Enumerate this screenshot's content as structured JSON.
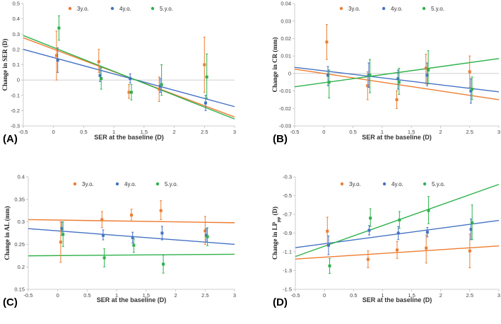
{
  "colors": {
    "3y": "#ED7D31",
    "4y": "#4472C4",
    "5y": "#2DB24A",
    "axis": "#bfbfbf",
    "text": "#444444"
  },
  "legend": [
    {
      "key": "3y",
      "label": "3y.o."
    },
    {
      "key": "4y",
      "label": "4y.o."
    },
    {
      "key": "5y",
      "label": "5.y.o."
    }
  ],
  "chart_data": [
    {
      "type": "scatter",
      "panel_label": "(A)",
      "xlabel": "SER at the baseline (D)",
      "ylabel": "Change in SER (D)",
      "ylabel_sub": "",
      "ylabel_tail": "",
      "xlim": [
        -0.5,
        3
      ],
      "xticks": [
        -0.5,
        0,
        0.5,
        1,
        1.5,
        2,
        2.5,
        3
      ],
      "xtick_labels": [
        "-0.5",
        "0",
        "0.5",
        "1",
        "1.5",
        "2",
        "2.5",
        "3"
      ],
      "ylim": [
        -0.3,
        0.5
      ],
      "yticks": [
        -0.3,
        -0.2,
        -0.1,
        0,
        0.1,
        0.2,
        0.3,
        0.4,
        0.5
      ],
      "ytick_labels": [
        "-0.3",
        "-0.2",
        "-0.1",
        "0",
        "0.1",
        "0.2",
        "0.3",
        "0.4",
        "0.5"
      ],
      "series": [
        {
          "name": "3y.o.",
          "key": "3y",
          "points": [
            {
              "x": 0.05,
              "y": 0.16,
              "lo": 0.0,
              "hi": 0.32
            },
            {
              "x": 0.75,
              "y": 0.12,
              "lo": 0.05,
              "hi": 0.2
            },
            {
              "x": 1.25,
              "y": -0.08,
              "lo": -0.12,
              "hi": -0.03
            },
            {
              "x": 1.75,
              "y": -0.06,
              "lo": -0.14,
              "hi": 0.02
            },
            {
              "x": 2.5,
              "y": 0.1,
              "lo": -0.08,
              "hi": 0.28
            }
          ],
          "trend": [
            0.202,
            -0.148
          ]
        },
        {
          "name": "4y.o.",
          "key": "4y",
          "points": [
            {
              "x": 0.07,
              "y": 0.13,
              "lo": 0.05,
              "hi": 0.21
            },
            {
              "x": 0.77,
              "y": 0.03,
              "lo": -0.01,
              "hi": 0.08
            },
            {
              "x": 1.27,
              "y": 0.01,
              "lo": -0.02,
              "hi": 0.04
            },
            {
              "x": 1.77,
              "y": -0.04,
              "lo": -0.08,
              "hi": 0.01
            },
            {
              "x": 2.52,
              "y": -0.15,
              "lo": -0.2,
              "hi": -0.1
            }
          ],
          "trend": [
            0.147,
            -0.107
          ]
        },
        {
          "name": "5.y.o.",
          "key": "5y",
          "points": [
            {
              "x": 0.09,
              "y": 0.34,
              "lo": 0.26,
              "hi": 0.42
            },
            {
              "x": 0.79,
              "y": 0.01,
              "lo": -0.06,
              "hi": 0.08
            },
            {
              "x": 1.29,
              "y": -0.08,
              "lo": -0.13,
              "hi": -0.03
            },
            {
              "x": 1.79,
              "y": -0.03,
              "lo": -0.1,
              "hi": 0.1
            },
            {
              "x": 2.54,
              "y": 0.02,
              "lo": -0.12,
              "hi": 0.17
            }
          ],
          "trend": [
            0.213,
            -0.156
          ]
        }
      ]
    },
    {
      "type": "scatter",
      "panel_label": "(B)",
      "xlabel": "SER at the baseline (D)",
      "ylabel": "Change in CR (mm)",
      "ylabel_sub": "",
      "ylabel_tail": "",
      "xlim": [
        -0.5,
        3
      ],
      "xticks": [
        -0.5,
        0,
        0.5,
        1,
        1.5,
        2,
        2.5,
        3
      ],
      "xtick_labels": [
        "-0.5",
        "0",
        "0.5",
        "1",
        "1.5",
        "2",
        "2.5",
        "3"
      ],
      "ylim": [
        -0.03,
        0.04
      ],
      "yticks": [
        -0.03,
        -0.02,
        -0.01,
        0,
        0.01,
        0.02,
        0.03,
        0.04
      ],
      "ytick_labels": [
        "-0.03",
        "-0.02",
        "-0.01",
        "0",
        "0.01",
        "0.02",
        "0.03",
        "0.04"
      ],
      "series": [
        {
          "name": "3y.o.",
          "key": "3y",
          "points": [
            {
              "x": 0.05,
              "y": 0.018,
              "lo": 0.008,
              "hi": 0.028
            },
            {
              "x": 0.75,
              "y": -0.007,
              "lo": -0.015,
              "hi": 0.001
            },
            {
              "x": 1.25,
              "y": -0.015,
              "lo": -0.02,
              "hi": -0.01
            },
            {
              "x": 1.75,
              "y": 0.003,
              "lo": -0.006,
              "hi": 0.011
            },
            {
              "x": 2.5,
              "y": 0.001,
              "lo": -0.008,
              "hi": 0.01
            }
          ],
          "trend": [
            0.0,
            -0.005
          ]
        },
        {
          "name": "4y.o.",
          "key": "4y",
          "points": [
            {
              "x": 0.07,
              "y": -0.001,
              "lo": -0.007,
              "hi": 0.004
            },
            {
              "x": 0.77,
              "y": -0.001,
              "lo": -0.008,
              "hi": 0.006
            },
            {
              "x": 1.27,
              "y": -0.003,
              "lo": -0.009,
              "hi": 0.002
            },
            {
              "x": 1.77,
              "y": -0.001,
              "lo": -0.007,
              "hi": 0.006
            },
            {
              "x": 2.52,
              "y": -0.01,
              "lo": -0.017,
              "hi": -0.003
            }
          ],
          "trend": [
            0.0015,
            -0.004
          ]
        },
        {
          "name": "5.y.o.",
          "key": "5y",
          "points": [
            {
              "x": 0.09,
              "y": -0.005,
              "lo": -0.014,
              "hi": 0.002
            },
            {
              "x": 0.79,
              "y": -0.001,
              "lo": -0.011,
              "hi": 0.008
            },
            {
              "x": 1.29,
              "y": -0.005,
              "lo": -0.012,
              "hi": 0.003
            },
            {
              "x": 1.79,
              "y": 0.002,
              "lo": -0.006,
              "hi": 0.013
            },
            {
              "x": 2.54,
              "y": -0.009,
              "lo": -0.015,
              "hi": -0.002
            }
          ],
          "trend": [
            -0.0053,
            0.0046
          ]
        }
      ]
    },
    {
      "type": "scatter",
      "panel_label": "(C)",
      "xlabel": "SER at the baseline (D)",
      "ylabel": "Change in AL (mm)",
      "ylabel_sub": "",
      "ylabel_tail": "",
      "xlim": [
        -0.5,
        3
      ],
      "xticks": [
        -0.5,
        0,
        0.5,
        1,
        1.5,
        2,
        2.5,
        3
      ],
      "xtick_labels": [
        "-0.5",
        "0",
        "0.5",
        "1",
        "1.5",
        "2",
        "2.5",
        "3"
      ],
      "ylim": [
        0.15,
        0.4
      ],
      "yticks": [
        0.15,
        0.2,
        0.25,
        0.3,
        0.35,
        0.4
      ],
      "ytick_labels": [
        "0.15",
        "0.2",
        "0.25",
        "0.3",
        "0.35",
        "0.4"
      ],
      "series": [
        {
          "name": "3y.o.",
          "key": "3y",
          "points": [
            {
              "x": 0.05,
              "y": 0.255,
              "lo": 0.21,
              "hi": 0.3
            },
            {
              "x": 0.75,
              "y": 0.305,
              "lo": 0.287,
              "hi": 0.323
            },
            {
              "x": 1.25,
              "y": 0.315,
              "lo": 0.302,
              "hi": 0.328
            },
            {
              "x": 1.75,
              "y": 0.325,
              "lo": 0.305,
              "hi": 0.347
            },
            {
              "x": 2.5,
              "y": 0.28,
              "lo": 0.25,
              "hi": 0.312
            }
          ],
          "trend": [
            0.304,
            -0.002
          ]
        },
        {
          "name": "4y.o.",
          "key": "4y",
          "points": [
            {
              "x": 0.07,
              "y": 0.285,
              "lo": 0.27,
              "hi": 0.3
            },
            {
              "x": 0.77,
              "y": 0.27,
              "lo": 0.26,
              "hi": 0.282
            },
            {
              "x": 1.27,
              "y": 0.265,
              "lo": 0.253,
              "hi": 0.277
            },
            {
              "x": 1.77,
              "y": 0.275,
              "lo": 0.26,
              "hi": 0.29
            },
            {
              "x": 2.52,
              "y": 0.27,
              "lo": 0.255,
              "hi": 0.285
            }
          ],
          "trend": [
            0.28,
            -0.01
          ]
        },
        {
          "name": "5.y.o.",
          "key": "5y",
          "points": [
            {
              "x": 0.09,
              "y": 0.272,
              "lo": 0.245,
              "hi": 0.3
            },
            {
              "x": 0.79,
              "y": 0.22,
              "lo": 0.2,
              "hi": 0.24
            },
            {
              "x": 1.29,
              "y": 0.248,
              "lo": 0.232,
              "hi": 0.262
            },
            {
              "x": 1.79,
              "y": 0.206,
              "lo": 0.186,
              "hi": 0.226
            },
            {
              "x": 2.54,
              "y": 0.267,
              "lo": 0.247,
              "hi": 0.287
            }
          ],
          "trend": [
            0.225,
            0.001
          ]
        }
      ]
    },
    {
      "type": "scatter",
      "panel_label": "(D)",
      "xlabel": "SER at the baseline (D)",
      "ylabel": "Change in LP",
      "ylabel_sub": "pp",
      "ylabel_tail": " (D)",
      "xlim": [
        -0.5,
        3
      ],
      "xticks": [
        -0.5,
        0,
        0.5,
        1,
        1.5,
        2,
        2.5,
        3
      ],
      "xtick_labels": [
        "-0.5",
        "0",
        "0.5",
        "1",
        "1.5",
        "2",
        "2.5",
        "3"
      ],
      "ylim": [
        -1.5,
        -0.3
      ],
      "yticks": [
        -1.5,
        -1.3,
        -1.1,
        -0.9,
        -0.7,
        -0.5,
        -0.3
      ],
      "ytick_labels": [
        "-1.5",
        "-1.3",
        "-1.1",
        "-0.9",
        "-0.7",
        "-0.5",
        "-0.3"
      ],
      "series": [
        {
          "name": "3y.o.",
          "key": "3y",
          "points": [
            {
              "x": 0.05,
              "y": -0.88,
              "lo": -1.03,
              "hi": -0.73
            },
            {
              "x": 0.75,
              "y": -1.18,
              "lo": -1.27,
              "hi": -1.09
            },
            {
              "x": 1.25,
              "y": -1.08,
              "lo": -1.17,
              "hi": -0.99
            },
            {
              "x": 1.75,
              "y": -1.06,
              "lo": -1.22,
              "hi": -0.92
            },
            {
              "x": 2.5,
              "y": -1.09,
              "lo": -1.27,
              "hi": -0.91
            }
          ],
          "trend": [
            -1.157,
            0.04
          ]
        },
        {
          "name": "4y.o.",
          "key": "4y",
          "points": [
            {
              "x": 0.07,
              "y": -1.03,
              "lo": -1.13,
              "hi": -0.93
            },
            {
              "x": 0.77,
              "y": -0.87,
              "lo": -0.92,
              "hi": -0.82
            },
            {
              "x": 1.27,
              "y": -0.9,
              "lo": -0.97,
              "hi": -0.83
            },
            {
              "x": 1.77,
              "y": -0.89,
              "lo": -0.94,
              "hi": -0.84
            },
            {
              "x": 2.52,
              "y": -0.86,
              "lo": -0.97,
              "hi": -0.75
            }
          ],
          "trend": [
            -1.014,
            0.083
          ]
        },
        {
          "name": "5.y.o.",
          "key": "5y",
          "points": [
            {
              "x": 0.09,
              "y": -1.25,
              "lo": -1.33,
              "hi": -1.17
            },
            {
              "x": 0.79,
              "y": -0.74,
              "lo": -0.83,
              "hi": -0.64
            },
            {
              "x": 1.29,
              "y": -0.76,
              "lo": -0.85,
              "hi": -0.67
            },
            {
              "x": 1.79,
              "y": -0.66,
              "lo": -0.8,
              "hi": -0.51
            },
            {
              "x": 2.54,
              "y": -0.79,
              "lo": -0.97,
              "hi": -0.6
            }
          ],
          "trend": [
            -1.04,
            0.22
          ]
        }
      ]
    }
  ]
}
